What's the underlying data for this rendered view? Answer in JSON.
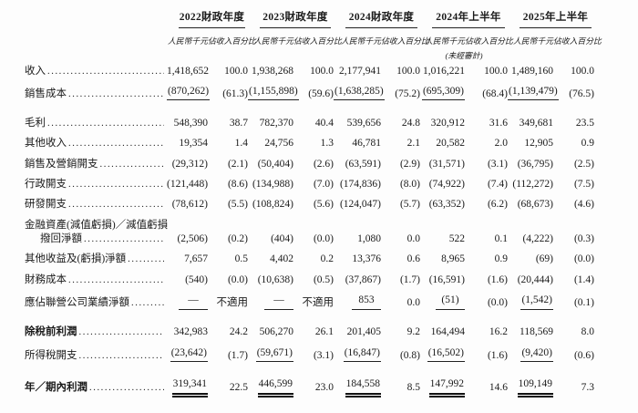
{
  "page": {
    "background": "#fdfdfd",
    "text_color": "#1a1a1a"
  },
  "table": {
    "year_groups": [
      {
        "label": "2022財政年度"
      },
      {
        "label": "2023財政年度"
      },
      {
        "label": "2024財政年度"
      },
      {
        "label": "2024年上半年"
      },
      {
        "label": "2025年上半年"
      }
    ],
    "subheader": {
      "amount": "人民幣千元",
      "percent": "佔收入百分比"
    },
    "unaudited_note": "(未經審計)",
    "rows": [
      {
        "label": "收入",
        "values": [
          "1,418,652",
          "100.0",
          "1,938,268",
          "100.0",
          "2,177,941",
          "100.0",
          "1,016,221",
          "100.0",
          "1,489,160",
          "100.0"
        ]
      },
      {
        "label": "銷售成本",
        "underline": "single",
        "values": [
          "(870,262)",
          "(61.3)",
          "(1,155,898)",
          "(59.6)",
          "(1,638,285)",
          "(75.2)",
          "(695,309)",
          "(68.4)",
          "(1,139,479)",
          "(76.5)"
        ]
      },
      {
        "label": "毛利",
        "gap": true,
        "values": [
          "548,390",
          "38.7",
          "782,370",
          "40.4",
          "539,656",
          "24.8",
          "320,912",
          "31.6",
          "349,681",
          "23.5"
        ]
      },
      {
        "label": "其他收入",
        "values": [
          "19,354",
          "1.4",
          "24,756",
          "1.3",
          "46,781",
          "2.1",
          "20,582",
          "2.0",
          "12,905",
          "0.9"
        ]
      },
      {
        "label": "銷售及營銷開支",
        "values": [
          "(29,312)",
          "(2.1)",
          "(50,404)",
          "(2.6)",
          "(63,591)",
          "(2.9)",
          "(31,571)",
          "(3.1)",
          "(36,795)",
          "(2.5)"
        ]
      },
      {
        "label": "行政開支",
        "values": [
          "(121,448)",
          "(8.6)",
          "(134,988)",
          "(7.0)",
          "(174,836)",
          "(8.0)",
          "(74,922)",
          "(7.4)",
          "(112,272)",
          "(7.5)"
        ]
      },
      {
        "label": "研發開支",
        "values": [
          "(78,612)",
          "(5.5)",
          "(108,824)",
          "(5.6)",
          "(124,047)",
          "(5.7)",
          "(63,352)",
          "(6.2)",
          "(68,673)",
          "(4.6)"
        ]
      },
      {
        "label": "金融資產(減值虧損)／減值虧損",
        "label_only": true
      },
      {
        "label": "撥回淨額",
        "indent": true,
        "values": [
          "(2,506)",
          "(0.2)",
          "(404)",
          "(0.0)",
          "1,080",
          "0.0",
          "522",
          "0.1",
          "(4,222)",
          "(0.3)"
        ]
      },
      {
        "label": "其他收益及(虧損)淨額",
        "values": [
          "7,657",
          "0.5",
          "4,402",
          "0.2",
          "13,376",
          "0.6",
          "8,965",
          "0.9",
          "(69)",
          "(0.0)"
        ]
      },
      {
        "label": "財務成本",
        "values": [
          "(540)",
          "(0.0)",
          "(10,638)",
          "(0.5)",
          "(37,867)",
          "(1.7)",
          "(16,591)",
          "(1.6)",
          "(20,444)",
          "(1.4)"
        ]
      },
      {
        "label": "應佔聯營公司業績淨額",
        "underline": "single",
        "values": [
          "—",
          "不適用",
          "—",
          "不適用",
          "853",
          "0.0",
          "(51)",
          "(0.0)",
          "(1,542)",
          "(0.1)"
        ]
      },
      {
        "label": "除稅前利潤",
        "bold": true,
        "gap": true,
        "values": [
          "342,983",
          "24.2",
          "506,270",
          "26.1",
          "201,405",
          "9.2",
          "164,494",
          "16.2",
          "118,569",
          "8.0"
        ]
      },
      {
        "label": "所得稅開支",
        "underline": "single",
        "values": [
          "(23,642)",
          "(1.7)",
          "(59,671)",
          "(3.1)",
          "(16,847)",
          "(0.8)",
          "(16,502)",
          "(1.6)",
          "(9,420)",
          "(0.6)"
        ]
      },
      {
        "label": "年／期內利潤",
        "bold": true,
        "gap": true,
        "underline": "double",
        "values": [
          "319,341",
          "22.5",
          "446,599",
          "23.0",
          "184,558",
          "8.5",
          "147,992",
          "14.6",
          "109,149",
          "7.3"
        ]
      }
    ]
  }
}
